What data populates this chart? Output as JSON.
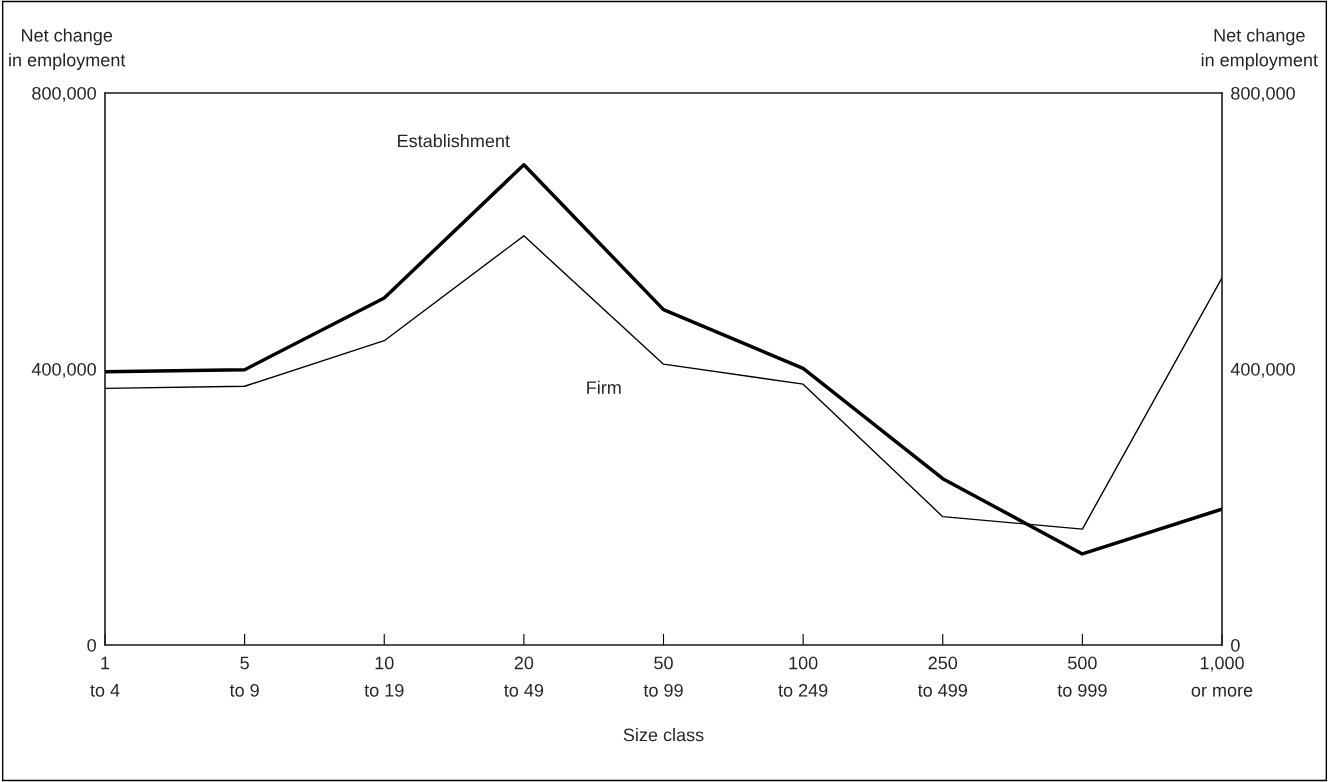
{
  "chart_data": {
    "type": "line",
    "xlabel": "Size class",
    "ylabel": "Net change\nin employment",
    "y2label": "Net change\nin employment",
    "categories": [
      "1\nto 4",
      "5\nto 9",
      "10\nto 19",
      "20\nto 49",
      "50\nto 99",
      "100\nto 249",
      "250\nto 499",
      "500\nto 999",
      "1,000\nor more"
    ],
    "series": [
      {
        "name": "Establishment",
        "color": "#000000",
        "values": [
          396000,
          399000,
          503000,
          696000,
          486000,
          401000,
          241000,
          132000,
          197000
        ]
      },
      {
        "name": "Firm",
        "color": "#000000",
        "values": [
          372000,
          375000,
          441000,
          593000,
          407000,
          378000,
          186000,
          168000,
          532000
        ]
      }
    ],
    "ylim": [
      0,
      800000
    ],
    "yticks": [
      {
        "value": 0,
        "label": "0"
      },
      {
        "value": 400000,
        "label": "400,000"
      },
      {
        "value": 800000,
        "label": "800,000"
      }
    ],
    "y2lim": [
      0,
      800000
    ],
    "y2ticks": [
      {
        "value": 0,
        "label": "0"
      },
      {
        "value": 400000,
        "label": "400,000"
      },
      {
        "value": 800000,
        "label": "800,000"
      }
    ],
    "grid": false,
    "legend": false,
    "marker": "none",
    "line_style": "solid"
  }
}
